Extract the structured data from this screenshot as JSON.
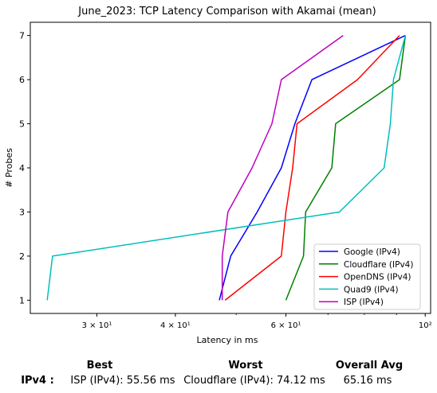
{
  "chart_data": {
    "type": "line",
    "title": "June_2023: TCP Latency Comparison with Akamai (mean)",
    "xlabel": "Latency in ms",
    "ylabel": "# Probes",
    "xscale": "log",
    "xlim": [
      23.5,
      102
    ],
    "ylim": [
      0.7,
      7.3
    ],
    "xticks": [
      {
        "value": 30,
        "label": "3 × 10¹"
      },
      {
        "value": 40,
        "label": "4 × 10¹"
      },
      {
        "value": 60,
        "label": "6 × 10¹"
      },
      {
        "value": 100,
        "label": "10²"
      }
    ],
    "yticks": [
      1,
      2,
      3,
      4,
      5,
      6,
      7
    ],
    "grid": false,
    "legend_position": "lower-right",
    "series": [
      {
        "name": "Google (IPv4)",
        "color": "#0000ff",
        "x": [
          47.0,
          49.0,
          54.0,
          59.0,
          62.0,
          66.0,
          93.0
        ],
        "y": [
          1,
          2,
          3,
          4,
          5,
          6,
          7
        ]
      },
      {
        "name": "Cloudflare (IPv4)",
        "color": "#008000",
        "x": [
          60.0,
          64.0,
          64.5,
          71.0,
          72.0,
          91.0,
          93.0
        ],
        "y": [
          1,
          2,
          3,
          4,
          5,
          6,
          7
        ]
      },
      {
        "name": "OpenDNS (IPv4)",
        "color": "#ff0000",
        "x": [
          48.0,
          59.0,
          60.0,
          61.5,
          62.5,
          78.0,
          91.0
        ],
        "y": [
          1,
          2,
          3,
          4,
          5,
          6,
          7
        ]
      },
      {
        "name": "Quad9 (IPv4)",
        "color": "#00bfbf",
        "x": [
          25.0,
          25.5,
          73.0,
          86.0,
          88.0,
          89.0,
          93.0
        ],
        "y": [
          1,
          2,
          3,
          4,
          5,
          6,
          7
        ]
      },
      {
        "name": "ISP (IPv4)",
        "color": "#bf00bf",
        "x": [
          47.5,
          47.5,
          48.5,
          53.0,
          57.0,
          59.0,
          74.0
        ],
        "y": [
          1,
          2,
          3,
          4,
          5,
          6,
          7
        ]
      }
    ]
  },
  "summary": {
    "headers": {
      "best": "Best",
      "worst": "Worst",
      "avg": "Overall Avg"
    },
    "row_label": "IPv4 :",
    "best": "ISP (IPv4): 55.56 ms",
    "worst": "Cloudflare (IPv4): 74.12 ms",
    "avg": "65.16 ms"
  }
}
